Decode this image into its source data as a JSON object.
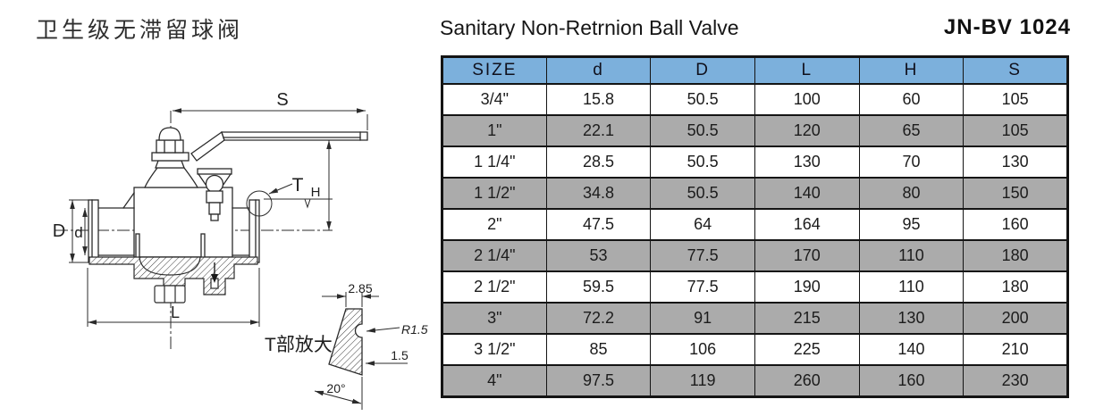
{
  "header": {
    "title_cn": "卫生级无滞留球阀",
    "title_en": "Sanitary Non-Retrnion Ball Valve",
    "model": "JN-BV 1024"
  },
  "drawing": {
    "labels": {
      "s": "S",
      "t": "T",
      "h": "H",
      "big_d": "D",
      "small_d": "d",
      "l": "L",
      "detail_title": "T部放大",
      "detail_width": "2.85",
      "detail_radius": "R1.5",
      "detail_thickness": "1.5",
      "detail_angle": "20°"
    }
  },
  "table": {
    "columns": [
      "SIZE",
      "d",
      "D",
      "L",
      "H",
      "S"
    ],
    "rows": [
      [
        "3/4\"",
        "15.8",
        "50.5",
        "100",
        "60",
        "105"
      ],
      [
        "1\"",
        "22.1",
        "50.5",
        "120",
        "65",
        "105"
      ],
      [
        "1 1/4\"",
        "28.5",
        "50.5",
        "130",
        "70",
        "130"
      ],
      [
        "1 1/2\"",
        "34.8",
        "50.5",
        "140",
        "80",
        "150"
      ],
      [
        "2\"",
        "47.5",
        "64",
        "164",
        "95",
        "160"
      ],
      [
        "2 1/4\"",
        "53",
        "77.5",
        "170",
        "110",
        "180"
      ],
      [
        "2 1/2\"",
        "59.5",
        "77.5",
        "190",
        "110",
        "180"
      ],
      [
        "3\"",
        "72.2",
        "91",
        "215",
        "130",
        "200"
      ],
      [
        "3 1/2\"",
        "85",
        "106",
        "225",
        "140",
        "210"
      ],
      [
        "4\"",
        "97.5",
        "119",
        "260",
        "160",
        "230"
      ]
    ]
  },
  "colors": {
    "header_blue": "#7CB0DC",
    "row_gray": "#ABABAB",
    "border": "#141414"
  }
}
